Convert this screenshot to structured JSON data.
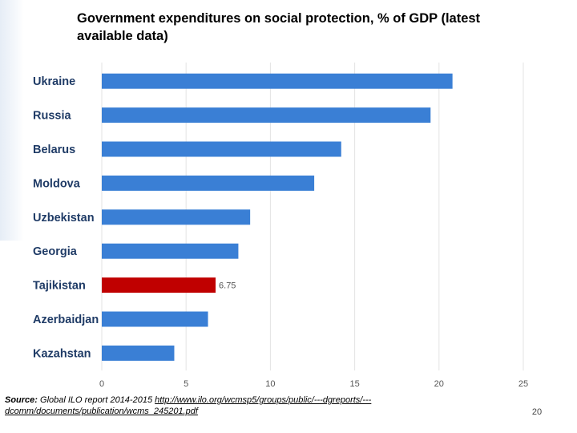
{
  "slide": {
    "title": "Government expenditures on social protection, % of GDP (latest available data)",
    "source_label": "Source:",
    "source_text": " Global ILO report 2014-2015 ",
    "source_link": "http://www.ilo.org/wcmsp5/groups/public/---dgreports/---dcomm/documents/publication/wcms_245201.pdf",
    "page_number": "20"
  },
  "colors": {
    "bar": "#3a7fd5",
    "highlight_bar": "#c00000",
    "grid": "#e3e3e3",
    "tick_text": "#555555",
    "category_text": "#1f3b66"
  },
  "chart_data": {
    "type": "bar",
    "orientation": "horizontal",
    "categories": [
      "Ukraine",
      "Russia",
      "Belarus",
      "Moldova",
      "Uzbekistan",
      "Georgia",
      "Tajikistan",
      "Azerbaidjan",
      "Kazahstan"
    ],
    "values": [
      20.8,
      19.5,
      14.2,
      12.6,
      8.8,
      8.1,
      6.75,
      6.3,
      4.3
    ],
    "highlight": "Tajikistan",
    "data_labels": {
      "Tajikistan": "6.75"
    },
    "xlim": [
      0,
      25
    ],
    "xticks": [
      0,
      5,
      10,
      15,
      20,
      25
    ],
    "grid": true
  }
}
